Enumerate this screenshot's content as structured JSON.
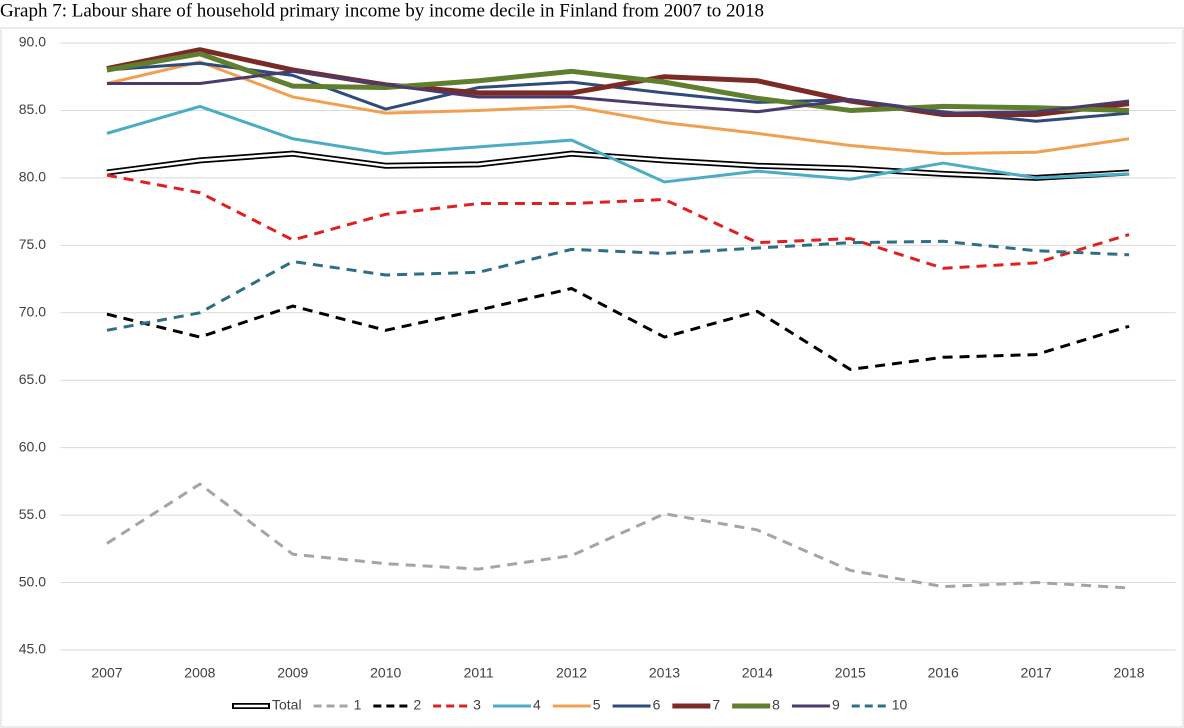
{
  "chart_data": {
    "type": "line",
    "title": "Graph 7: Labour share of household primary income by income decile in Finland from 2007 to 2018",
    "categories": [
      "2007",
      "2008",
      "2009",
      "2010",
      "2011",
      "2012",
      "2013",
      "2014",
      "2015",
      "2016",
      "2017",
      "2018"
    ],
    "ylim": [
      45,
      90
    ],
    "yticks": [
      {
        "value": 45,
        "label": "45.0"
      },
      {
        "value": 50,
        "label": "50.0"
      },
      {
        "value": 55,
        "label": "55.0"
      },
      {
        "value": 60,
        "label": "60.0"
      },
      {
        "value": 65,
        "label": "65.0"
      },
      {
        "value": 70,
        "label": "70.0"
      },
      {
        "value": 75,
        "label": "75.0"
      },
      {
        "value": 80,
        "label": "80.0"
      },
      {
        "value": 85,
        "label": "85.0"
      },
      {
        "value": 90,
        "label": "90.0"
      }
    ],
    "grid": true,
    "legend": "bottom",
    "series": [
      {
        "name": "Total",
        "color": "#000000",
        "style": "double",
        "values": [
          80.4,
          81.3,
          81.8,
          80.9,
          81.0,
          81.8,
          81.3,
          80.9,
          80.7,
          80.3,
          80.0,
          80.4
        ]
      },
      {
        "name": "1",
        "color": "#a5a5a5",
        "style": "dashed",
        "values": [
          52.9,
          57.3,
          52.1,
          51.4,
          51.0,
          52.0,
          55.1,
          53.9,
          50.9,
          49.7,
          50.0,
          49.6
        ]
      },
      {
        "name": "2",
        "color": "#000000",
        "style": "dashed",
        "values": [
          69.9,
          68.2,
          70.5,
          68.7,
          70.2,
          71.8,
          68.2,
          70.1,
          65.8,
          66.7,
          66.9,
          69.0
        ]
      },
      {
        "name": "3",
        "color": "#e02020",
        "style": "dashed",
        "values": [
          80.2,
          78.9,
          75.4,
          77.3,
          78.1,
          78.1,
          78.4,
          75.2,
          75.5,
          73.3,
          73.7,
          75.8
        ]
      },
      {
        "name": "4",
        "color": "#4bacc6",
        "style": "solid",
        "values": [
          83.3,
          85.3,
          82.9,
          81.8,
          82.3,
          82.8,
          79.7,
          80.5,
          79.9,
          81.1,
          80.0,
          80.3
        ]
      },
      {
        "name": "5",
        "color": "#f0a050",
        "style": "solid",
        "values": [
          87.0,
          88.6,
          86.0,
          84.8,
          85.0,
          85.3,
          84.1,
          83.3,
          82.4,
          81.8,
          81.9,
          82.9
        ]
      },
      {
        "name": "6",
        "color": "#2f4b7c",
        "style": "solid",
        "values": [
          88.0,
          88.5,
          87.6,
          85.1,
          86.7,
          87.1,
          86.3,
          85.6,
          85.8,
          84.9,
          84.2,
          84.8
        ]
      },
      {
        "name": "7",
        "color": "#7b2a26",
        "style": "thick",
        "values": [
          88.1,
          89.5,
          88.0,
          86.9,
          86.3,
          86.3,
          87.5,
          87.2,
          85.7,
          84.7,
          84.7,
          85.5
        ]
      },
      {
        "name": "8",
        "color": "#5f7f2e",
        "style": "thick",
        "values": [
          88.0,
          89.2,
          86.8,
          86.7,
          87.2,
          87.9,
          87.1,
          85.9,
          85.0,
          85.3,
          85.2,
          85.0
        ]
      },
      {
        "name": "9",
        "color": "#4b3a6e",
        "style": "solid",
        "values": [
          87.0,
          87.0,
          87.9,
          86.9,
          86.0,
          86.0,
          85.4,
          84.9,
          85.8,
          84.8,
          84.9,
          85.7
        ]
      },
      {
        "name": "10",
        "color": "#2e6f86",
        "style": "dashed",
        "values": [
          68.7,
          70.0,
          73.8,
          72.8,
          73.0,
          74.7,
          74.4,
          74.8,
          75.2,
          75.3,
          74.6,
          74.3
        ]
      }
    ]
  }
}
